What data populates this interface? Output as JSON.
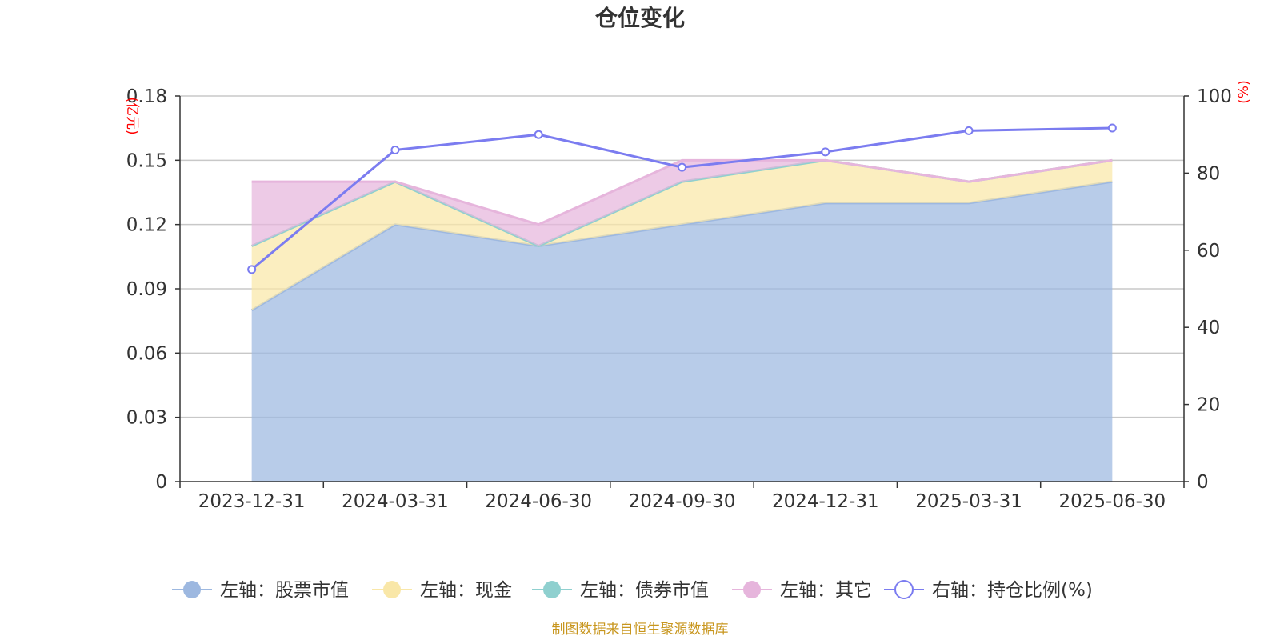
{
  "chart_data": {
    "type": "area",
    "title": "仓位变化",
    "x": [
      "2023-12-31",
      "2024-03-31",
      "2024-06-30",
      "2024-09-30",
      "2024-12-31",
      "2025-03-31",
      "2025-06-30"
    ],
    "left_axis": {
      "unit": "(亿元)",
      "ylim": [
        0,
        0.18
      ],
      "ticks": [
        "0",
        "0.03",
        "0.06",
        "0.09",
        "0.12",
        "0.15",
        "0.18"
      ]
    },
    "right_axis": {
      "unit": "(%)",
      "ylim": [
        0,
        100
      ],
      "ticks": [
        "0",
        "20",
        "40",
        "60",
        "80",
        "100"
      ]
    },
    "series": [
      {
        "name": "左轴：股票市值",
        "axis": "left",
        "kind": "stacked-area",
        "color": "#9db8e0",
        "values": [
          0.08,
          0.12,
          0.11,
          0.12,
          0.13,
          0.13,
          0.14
        ]
      },
      {
        "name": "左轴：现金",
        "axis": "left",
        "kind": "stacked-area",
        "color": "#f9e7a8",
        "values": [
          0.03,
          0.02,
          0.0,
          0.02,
          0.02,
          0.01,
          0.01
        ]
      },
      {
        "name": "左轴：债券市值",
        "axis": "left",
        "kind": "stacked-area",
        "color": "#8fd0cf",
        "values": [
          0,
          0,
          0,
          0,
          0,
          0,
          0
        ]
      },
      {
        "name": "左轴：其它",
        "axis": "left",
        "kind": "stacked-area",
        "color": "#e6b5dc",
        "values": [
          0.03,
          0.0,
          0.01,
          0.01,
          0.0,
          0.0,
          0.0
        ]
      },
      {
        "name": "右轴：持仓比例(%)",
        "axis": "right",
        "kind": "line",
        "color": "#7b7cf0",
        "values": [
          55,
          86,
          90,
          81.5,
          85.5,
          91,
          91.7
        ]
      }
    ],
    "grid": true,
    "legend_position": "bottom"
  },
  "source": "制图数据来自恒生聚源数据库"
}
